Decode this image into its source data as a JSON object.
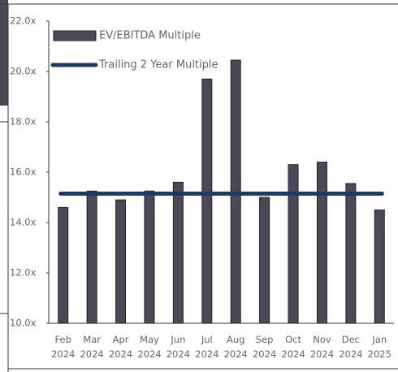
{
  "chart_data": {
    "type": "bar",
    "categories": [
      "Feb 2024",
      "Mar 2024",
      "Apr 2024",
      "May 2024",
      "Jun 2024",
      "Jul 2024",
      "Aug 2024",
      "Sep 2024",
      "Oct 2024",
      "Nov 2024",
      "Dec 2024",
      "Jan 2025"
    ],
    "series": [
      {
        "name": "EV/EBITDA Multiple",
        "type": "bar",
        "color": "#4a4a57",
        "values": [
          14.6,
          15.25,
          14.9,
          15.25,
          15.6,
          19.7,
          20.45,
          15.0,
          16.3,
          16.4,
          15.55,
          14.5
        ]
      },
      {
        "name": "Trailing 2 Year Multiple",
        "type": "line",
        "color": "#1f3864",
        "values": [
          15.15,
          15.15,
          15.15,
          15.15,
          15.15,
          15.15,
          15.15,
          15.15,
          15.15,
          15.15,
          15.15,
          15.15
        ]
      }
    ],
    "ylim": [
      10,
      22
    ],
    "yticks": [
      {
        "value": 10,
        "label": "10.0x"
      },
      {
        "value": 12,
        "label": "12.0x"
      },
      {
        "value": 14,
        "label": "14.0x"
      },
      {
        "value": 16,
        "label": "16.0x"
      },
      {
        "value": 18,
        "label": "18.0x"
      },
      {
        "value": 20,
        "label": "20.0x"
      },
      {
        "value": 22,
        "label": "22.0x"
      }
    ],
    "grid": false,
    "legend": "top-left"
  }
}
